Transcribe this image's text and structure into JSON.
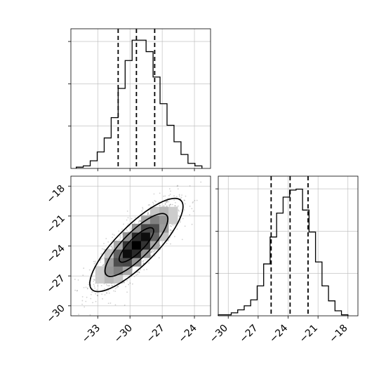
{
  "chart_data": [
    {
      "type": "histogram",
      "panel": "top-left",
      "xlim": [
        -35.5,
        -22.5
      ],
      "bin_width": 0.65,
      "bins": [
        {
          "x0": -35.0,
          "count": 1
        },
        {
          "x0": -34.35,
          "count": 2
        },
        {
          "x0": -33.7,
          "count": 6
        },
        {
          "x0": -33.05,
          "count": 13
        },
        {
          "x0": -32.4,
          "count": 24
        },
        {
          "x0": -31.75,
          "count": 40
        },
        {
          "x0": -31.1,
          "count": 63
        },
        {
          "x0": -30.45,
          "count": 85
        },
        {
          "x0": -29.8,
          "count": 101
        },
        {
          "x0": -29.15,
          "count": 101
        },
        {
          "x0": -28.5,
          "count": 92
        },
        {
          "x0": -27.85,
          "count": 72
        },
        {
          "x0": -27.2,
          "count": 51
        },
        {
          "x0": -26.55,
          "count": 34
        },
        {
          "x0": -25.9,
          "count": 21
        },
        {
          "x0": -25.25,
          "count": 11
        },
        {
          "x0": -24.6,
          "count": 4
        },
        {
          "x0": -23.95,
          "count": 2
        }
      ],
      "quantile_lines": [
        -31.1,
        -29.4,
        -27.7
      ],
      "ylim": [
        0,
        110
      ],
      "grid": true
    },
    {
      "type": "heatmap",
      "panel": "bottom-left",
      "xlim": [
        -35.5,
        -22.5
      ],
      "ylim": [
        -31,
        -17
      ],
      "xticks": [
        -33,
        -30,
        -27,
        -24
      ],
      "yticks": [
        -18,
        -21,
        -24,
        -27,
        -30
      ],
      "center": [
        -29.4,
        -23.9
      ],
      "contours": [
        "outer",
        "middle",
        "inner"
      ],
      "grid": true
    },
    {
      "type": "histogram",
      "panel": "bottom-right",
      "xlim": [
        -31,
        -17
      ],
      "bin_width": 0.65,
      "bins": [
        {
          "x0": -31.0,
          "count": 1
        },
        {
          "x0": -30.35,
          "count": 1
        },
        {
          "x0": -29.7,
          "count": 3
        },
        {
          "x0": -29.05,
          "count": 6
        },
        {
          "x0": -28.4,
          "count": 10
        },
        {
          "x0": -27.75,
          "count": 16
        },
        {
          "x0": -27.1,
          "count": 30
        },
        {
          "x0": -26.45,
          "count": 52
        },
        {
          "x0": -25.8,
          "count": 79
        },
        {
          "x0": -25.15,
          "count": 103
        },
        {
          "x0": -24.5,
          "count": 119
        },
        {
          "x0": -23.85,
          "count": 126
        },
        {
          "x0": -23.2,
          "count": 127
        },
        {
          "x0": -22.55,
          "count": 106
        },
        {
          "x0": -21.9,
          "count": 84
        },
        {
          "x0": -21.25,
          "count": 54
        },
        {
          "x0": -20.6,
          "count": 30
        },
        {
          "x0": -19.95,
          "count": 15
        },
        {
          "x0": -19.3,
          "count": 5
        },
        {
          "x0": -18.65,
          "count": 1
        }
      ],
      "quantile_lines": [
        -25.7,
        -23.8,
        -22.0
      ],
      "xticks": [
        -30,
        -27,
        -24,
        -21,
        -18
      ],
      "ylim": [
        0,
        140
      ],
      "grid": true
    }
  ]
}
